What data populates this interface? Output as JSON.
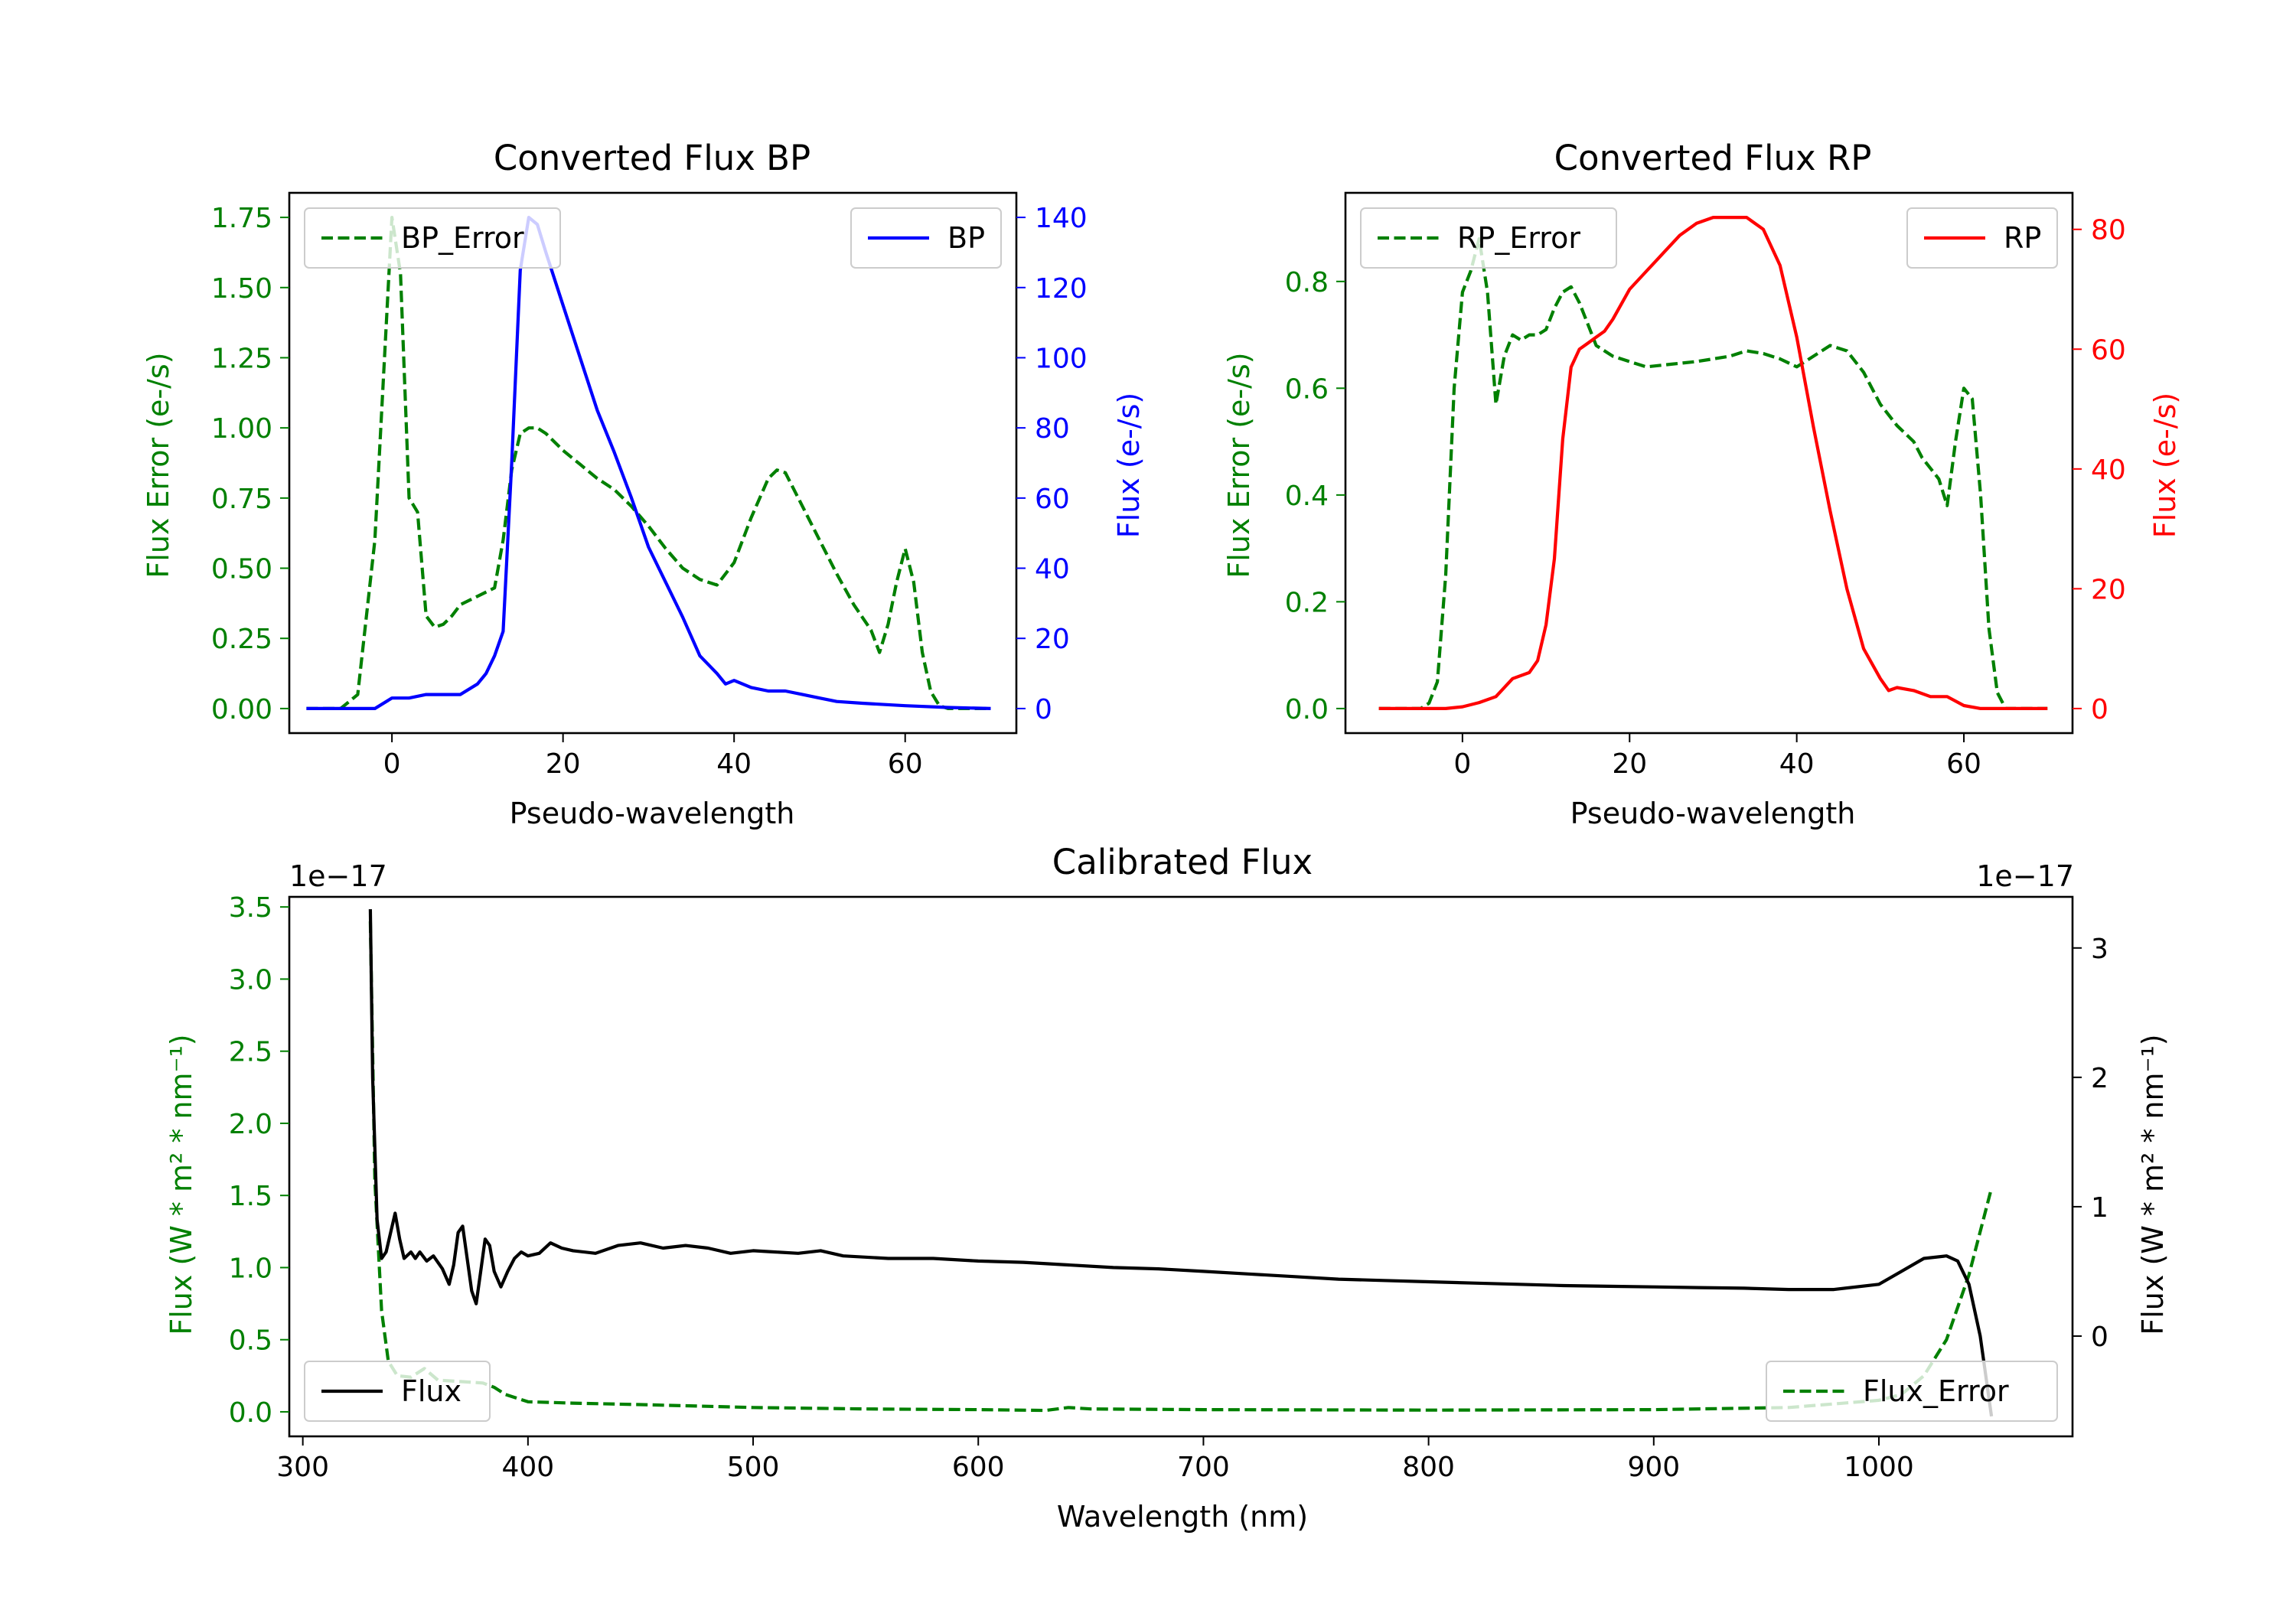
{
  "colors": {
    "green": "#008000",
    "blue": "#0000ff",
    "red": "#ff0000",
    "black": "#000000"
  },
  "chart_data": [
    {
      "type": "line",
      "title": "Converted Flux BP",
      "xlabel": "Pseudo-wavelength",
      "xlim": [
        -12,
        73
      ],
      "xticks": [
        0,
        20,
        40,
        60
      ],
      "left_axis": {
        "label": "Flux Error (e-/s)",
        "color": "#008000",
        "ylim": [
          -0.0875,
          1.8375
        ],
        "ticks": [
          "0.00",
          "0.25",
          "0.50",
          "0.75",
          "1.00",
          "1.25",
          "1.50",
          "1.75"
        ]
      },
      "right_axis": {
        "label": "Flux (e-/s)",
        "color": "#0000ff",
        "ylim": [
          -7,
          147
        ],
        "ticks": [
          "0",
          "20",
          "40",
          "60",
          "80",
          "100",
          "120",
          "140"
        ]
      },
      "series": [
        {
          "name": "BP_Error",
          "axis": "left",
          "style": "dashed",
          "color": "#008000",
          "x": [
            -10,
            -6,
            -4,
            -2,
            0,
            1,
            2,
            3,
            4,
            5,
            6,
            7,
            8,
            10,
            12,
            13,
            14,
            15,
            16,
            17,
            18,
            20,
            22,
            24,
            26,
            28,
            30,
            32,
            34,
            36,
            38,
            40,
            42,
            44,
            45,
            46,
            48,
            50,
            52,
            54,
            56,
            57,
            58,
            59,
            60,
            61,
            62,
            63,
            64,
            65,
            66,
            70
          ],
          "values": [
            0,
            0,
            0.05,
            0.6,
            1.75,
            1.55,
            0.75,
            0.7,
            0.33,
            0.29,
            0.3,
            0.33,
            0.37,
            0.4,
            0.43,
            0.6,
            0.85,
            0.98,
            1.0,
            1.0,
            0.98,
            0.92,
            0.87,
            0.82,
            0.78,
            0.72,
            0.65,
            0.57,
            0.5,
            0.46,
            0.44,
            0.52,
            0.68,
            0.82,
            0.85,
            0.84,
            0.72,
            0.6,
            0.48,
            0.37,
            0.28,
            0.2,
            0.3,
            0.45,
            0.57,
            0.45,
            0.2,
            0.06,
            0.01,
            0,
            0,
            0
          ]
        },
        {
          "name": "BP",
          "axis": "right",
          "style": "solid",
          "color": "#0000ff",
          "x": [
            -10,
            -2,
            0,
            2,
            4,
            6,
            8,
            10,
            11,
            12,
            13,
            14,
            15,
            16,
            17,
            18,
            20,
            22,
            24,
            26,
            28,
            30,
            32,
            34,
            36,
            38,
            39,
            40,
            42,
            44,
            46,
            48,
            50,
            52,
            55,
            60,
            65,
            70
          ],
          "values": [
            0,
            0,
            3,
            3,
            4,
            4,
            4,
            7,
            10,
            15,
            22,
            70,
            125,
            140,
            138,
            130,
            115,
            100,
            85,
            73,
            60,
            46,
            36,
            26,
            15,
            10,
            7,
            8,
            6,
            5,
            5,
            4,
            3,
            2,
            1.5,
            0.8,
            0.3,
            0
          ]
        }
      ],
      "legends": [
        {
          "entries": [
            "BP_Error"
          ],
          "position": "upper-left"
        },
        {
          "entries": [
            "BP"
          ],
          "position": "upper-right"
        }
      ]
    },
    {
      "type": "line",
      "title": "Converted Flux RP",
      "xlabel": "Pseudo-wavelength",
      "xlim": [
        -14,
        73
      ],
      "xticks": [
        0,
        20,
        40,
        60
      ],
      "left_axis": {
        "label": "Flux Error (e-/s)",
        "color": "#008000",
        "ylim": [
          -0.046,
          0.966
        ],
        "ticks": [
          "0.0",
          "0.2",
          "0.4",
          "0.6",
          "0.8"
        ]
      },
      "right_axis": {
        "label": "Flux (e-/s)",
        "color": "#ff0000",
        "ylim": [
          -4.1,
          86.1
        ],
        "ticks": [
          "0",
          "20",
          "40",
          "60",
          "80"
        ]
      },
      "series": [
        {
          "name": "RP_Error",
          "axis": "left",
          "style": "dashed",
          "color": "#008000",
          "x": [
            -10,
            -5,
            -4,
            -3,
            -2,
            -1,
            0,
            1,
            2,
            3,
            4,
            5,
            6,
            7,
            8,
            9,
            10,
            11,
            12,
            13,
            14,
            15,
            16,
            18,
            20,
            22,
            25,
            28,
            30,
            32,
            34,
            36,
            38,
            40,
            42,
            44,
            46,
            48,
            50,
            52,
            54,
            55,
            56,
            57,
            58,
            59,
            60,
            61,
            62,
            63,
            64,
            65,
            70
          ],
          "values": [
            0,
            0,
            0.01,
            0.05,
            0.25,
            0.6,
            0.78,
            0.82,
            0.88,
            0.78,
            0.57,
            0.66,
            0.7,
            0.69,
            0.7,
            0.7,
            0.71,
            0.75,
            0.78,
            0.79,
            0.76,
            0.72,
            0.68,
            0.66,
            0.65,
            0.64,
            0.645,
            0.65,
            0.655,
            0.66,
            0.67,
            0.665,
            0.655,
            0.64,
            0.66,
            0.68,
            0.67,
            0.63,
            0.57,
            0.53,
            0.5,
            0.47,
            0.45,
            0.43,
            0.38,
            0.5,
            0.6,
            0.58,
            0.4,
            0.15,
            0.03,
            0,
            0
          ]
        },
        {
          "name": "RP",
          "axis": "right",
          "style": "solid",
          "color": "#ff0000",
          "x": [
            -10,
            -2,
            0,
            2,
            4,
            6,
            8,
            9,
            10,
            11,
            12,
            13,
            14,
            15,
            16,
            17,
            18,
            20,
            22,
            24,
            26,
            28,
            30,
            32,
            34,
            36,
            38,
            40,
            42,
            44,
            46,
            48,
            50,
            51,
            52,
            54,
            56,
            58,
            60,
            62,
            64,
            70
          ],
          "values": [
            0,
            0,
            0.3,
            1,
            2,
            5,
            6,
            8,
            14,
            25,
            45,
            57,
            60,
            61,
            62,
            63,
            65,
            70,
            73,
            76,
            79,
            81,
            82,
            82,
            82,
            80,
            74,
            62,
            47,
            33,
            20,
            10,
            5,
            3,
            3.5,
            3,
            2,
            2,
            0.5,
            0,
            0,
            0
          ]
        }
      ],
      "legends": [
        {
          "entries": [
            "RP_Error"
          ],
          "position": "upper-left"
        },
        {
          "entries": [
            "RP"
          ],
          "position": "upper-right"
        }
      ]
    },
    {
      "type": "line",
      "title": "Calibrated Flux",
      "xlabel": "Wavelength (nm)",
      "xlim": [
        294,
        1086
      ],
      "xticks": [
        300,
        400,
        500,
        600,
        700,
        800,
        900,
        1000
      ],
      "left_axis": {
        "label": "Flux (W * m² * nm⁻¹)",
        "color": "#008000",
        "offset_text": "1e−17",
        "ylim": [
          -0.17,
          3.57
        ],
        "ticks": [
          "0.0",
          "0.5",
          "1.0",
          "1.5",
          "2.0",
          "2.5",
          "3.0",
          "3.5"
        ]
      },
      "right_axis": {
        "label": "Flux (W * m² * nm⁻¹)",
        "color": "#000000",
        "offset_text": "1e−17",
        "ylim": [
          -0.775,
          3.395
        ],
        "ticks": [
          "0",
          "1",
          "2",
          "3"
        ]
      },
      "series": [
        {
          "name": "Flux_Error",
          "axis": "left",
          "style": "dashed",
          "color": "#008000",
          "x": [
            330,
            332,
            335,
            338,
            342,
            348,
            354,
            360,
            370,
            380,
            385,
            390,
            400,
            420,
            450,
            500,
            550,
            600,
            630,
            640,
            650,
            700,
            800,
            900,
            960,
            1000,
            1010,
            1020,
            1030,
            1040,
            1050
          ],
          "values": [
            3.4,
            1.6,
            0.7,
            0.35,
            0.25,
            0.24,
            0.3,
            0.22,
            0.21,
            0.2,
            0.17,
            0.12,
            0.07,
            0.06,
            0.05,
            0.03,
            0.02,
            0.015,
            0.01,
            0.03,
            0.02,
            0.015,
            0.012,
            0.015,
            0.03,
            0.08,
            0.12,
            0.25,
            0.5,
            0.95,
            1.55
          ]
        },
        {
          "name": "Flux",
          "axis": "right",
          "style": "solid",
          "color": "#000000",
          "x": [
            330,
            331,
            333,
            335,
            337,
            339,
            341,
            343,
            345,
            348,
            350,
            352,
            355,
            358,
            362,
            365,
            367,
            369,
            371,
            373,
            375,
            377,
            379,
            381,
            383,
            385,
            388,
            391,
            394,
            397,
            400,
            405,
            410,
            415,
            420,
            430,
            440,
            450,
            460,
            470,
            480,
            490,
            500,
            510,
            520,
            530,
            540,
            560,
            580,
            600,
            620,
            640,
            660,
            680,
            700,
            720,
            740,
            760,
            780,
            800,
            820,
            840,
            860,
            880,
            900,
            920,
            940,
            960,
            980,
            1000,
            1010,
            1020,
            1030,
            1035,
            1040,
            1045,
            1050
          ],
          "values": [
            3.3,
            2.0,
            0.9,
            0.6,
            0.65,
            0.8,
            0.95,
            0.75,
            0.6,
            0.65,
            0.6,
            0.65,
            0.58,
            0.62,
            0.52,
            0.4,
            0.55,
            0.8,
            0.85,
            0.6,
            0.35,
            0.25,
            0.5,
            0.75,
            0.7,
            0.5,
            0.38,
            0.5,
            0.6,
            0.65,
            0.62,
            0.64,
            0.72,
            0.68,
            0.66,
            0.64,
            0.7,
            0.72,
            0.68,
            0.7,
            0.68,
            0.64,
            0.66,
            0.65,
            0.64,
            0.66,
            0.62,
            0.6,
            0.6,
            0.58,
            0.57,
            0.55,
            0.53,
            0.52,
            0.5,
            0.48,
            0.46,
            0.44,
            0.43,
            0.42,
            0.41,
            0.4,
            0.39,
            0.385,
            0.38,
            0.375,
            0.37,
            0.36,
            0.36,
            0.4,
            0.5,
            0.6,
            0.62,
            0.58,
            0.4,
            0.0,
            -0.62
          ]
        }
      ],
      "legends": [
        {
          "entries": [
            "Flux"
          ],
          "position": "lower-left"
        },
        {
          "entries": [
            "Flux_Error"
          ],
          "position": "lower-right"
        }
      ]
    }
  ]
}
